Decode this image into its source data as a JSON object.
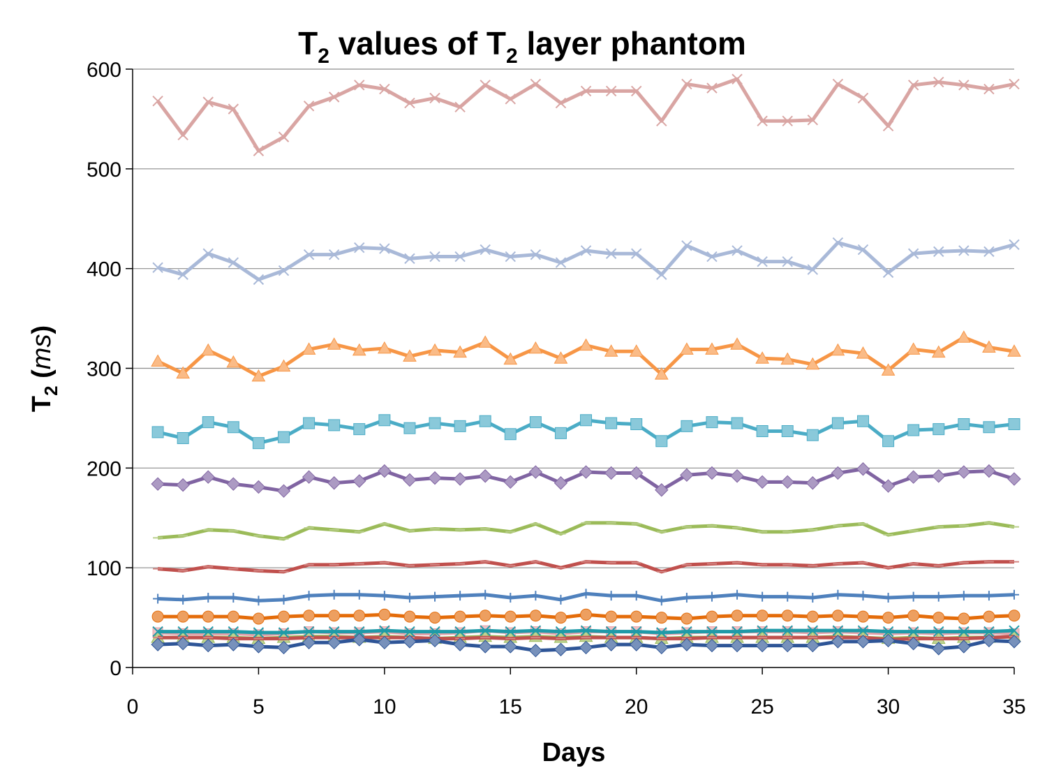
{
  "chart_data": {
    "type": "line",
    "title": {
      "main": "T",
      "sub": "2",
      "mid": " values of T",
      "sub2": "2",
      "tail": " layer phantom"
    },
    "xlabel": "Days",
    "ylabel": {
      "main": "T",
      "sub": "2",
      "tail_open": " (",
      "italic": "ms",
      "tail_close": ")"
    },
    "xlim": [
      0,
      35
    ],
    "ylim": [
      0,
      600
    ],
    "x_ticks": [
      0,
      5,
      10,
      15,
      20,
      25,
      30,
      35
    ],
    "y_ticks": [
      0,
      100,
      200,
      300,
      400,
      500,
      600
    ],
    "grid": "horizontal",
    "legend": "none",
    "x": [
      1,
      2,
      3,
      4,
      5,
      6,
      7,
      8,
      9,
      10,
      11,
      12,
      13,
      14,
      15,
      16,
      17,
      18,
      19,
      20,
      21,
      22,
      23,
      24,
      25,
      26,
      27,
      28,
      29,
      30,
      31,
      32,
      33,
      34,
      35
    ],
    "series": [
      {
        "name": "series-1",
        "color": "#d9a5a3",
        "marker": "x",
        "values": [
          568,
          534,
          567,
          560,
          518,
          532,
          563,
          572,
          584,
          580,
          566,
          571,
          562,
          584,
          570,
          585,
          566,
          578,
          578,
          578,
          548,
          585,
          581,
          590,
          548,
          548,
          549,
          585,
          571,
          543,
          584,
          587,
          584,
          580,
          585
        ]
      },
      {
        "name": "series-2",
        "color": "#a9b9d8",
        "marker": "x",
        "values": [
          401,
          394,
          415,
          406,
          389,
          398,
          414,
          414,
          421,
          420,
          410,
          412,
          412,
          419,
          412,
          414,
          406,
          418,
          415,
          415,
          394,
          423,
          412,
          418,
          407,
          407,
          399,
          426,
          419,
          396,
          415,
          417,
          418,
          417,
          424
        ]
      },
      {
        "name": "series-3",
        "color": "#f79646",
        "marker": "triangle",
        "values": [
          307,
          295,
          318,
          306,
          292,
          302,
          319,
          324,
          318,
          320,
          312,
          318,
          316,
          326,
          309,
          320,
          310,
          323,
          317,
          317,
          294,
          319,
          319,
          324,
          310,
          309,
          304,
          318,
          315,
          298,
          319,
          316,
          331,
          321,
          317
        ]
      },
      {
        "name": "series-4",
        "color": "#4bacc6",
        "marker": "square",
        "values": [
          236,
          230,
          246,
          241,
          225,
          231,
          245,
          243,
          239,
          248,
          240,
          245,
          242,
          247,
          234,
          246,
          235,
          248,
          245,
          244,
          227,
          242,
          246,
          245,
          237,
          237,
          233,
          245,
          247,
          227,
          238,
          239,
          244,
          241,
          244
        ]
      },
      {
        "name": "series-5",
        "color": "#8064a2",
        "marker": "diamond",
        "values": [
          184,
          183,
          191,
          184,
          181,
          177,
          191,
          185,
          187,
          197,
          188,
          190,
          189,
          192,
          186,
          196,
          185,
          196,
          195,
          195,
          178,
          193,
          195,
          192,
          186,
          186,
          185,
          195,
          199,
          182,
          191,
          192,
          196,
          197,
          189
        ]
      },
      {
        "name": "series-6",
        "color": "#9bbb59",
        "marker": "dash",
        "values": [
          130,
          132,
          138,
          137,
          132,
          129,
          140,
          138,
          136,
          144,
          137,
          139,
          138,
          139,
          136,
          144,
          134,
          145,
          145,
          144,
          136,
          141,
          142,
          140,
          136,
          136,
          138,
          142,
          144,
          133,
          137,
          141,
          142,
          145,
          141
        ]
      },
      {
        "name": "series-7",
        "color": "#c0504d",
        "marker": "dash",
        "values": [
          99,
          97,
          101,
          99,
          97,
          96,
          103,
          103,
          104,
          105,
          102,
          103,
          104,
          106,
          102,
          106,
          100,
          106,
          105,
          105,
          96,
          103,
          104,
          105,
          103,
          103,
          102,
          104,
          105,
          100,
          104,
          102,
          105,
          106,
          106
        ]
      },
      {
        "name": "series-8",
        "color": "#4f81bd",
        "marker": "plus",
        "values": [
          69,
          68,
          70,
          70,
          67,
          68,
          72,
          73,
          73,
          72,
          70,
          71,
          72,
          73,
          70,
          72,
          68,
          74,
          72,
          72,
          67,
          70,
          71,
          73,
          71,
          71,
          70,
          73,
          72,
          70,
          71,
          71,
          72,
          72,
          73
        ]
      },
      {
        "name": "series-9",
        "color": "#e46c0a",
        "marker": "circle",
        "values": [
          51,
          51,
          51,
          51,
          49,
          51,
          52,
          52,
          52,
          53,
          51,
          50,
          51,
          52,
          51,
          52,
          50,
          53,
          51,
          51,
          50,
          49,
          51,
          52,
          52,
          52,
          51,
          52,
          51,
          50,
          52,
          50,
          49,
          51,
          52
        ]
      },
      {
        "name": "series-10",
        "color": "#e6a0a8",
        "marker": "square-x",
        "values": [
          35,
          34,
          34,
          34,
          33,
          34,
          36,
          35,
          35,
          36,
          34,
          34,
          35,
          37,
          35,
          36,
          34,
          36,
          36,
          36,
          34,
          35,
          36,
          36,
          36,
          36,
          35,
          36,
          35,
          34,
          35,
          34,
          35,
          35,
          34
        ]
      },
      {
        "name": "series-11",
        "color": "#9bbb59",
        "marker": "triangle",
        "values": [
          30,
          30,
          30,
          30,
          29,
          30,
          31,
          31,
          30,
          31,
          30,
          29,
          30,
          31,
          30,
          31,
          30,
          31,
          30,
          30,
          29,
          30,
          30,
          30,
          30,
          30,
          30,
          31,
          30,
          29,
          30,
          29,
          30,
          30,
          31
        ]
      },
      {
        "name": "series-12",
        "color": "#c0504d",
        "marker": "dash",
        "values": [
          30,
          30,
          30,
          29,
          29,
          29,
          30,
          30,
          30,
          30,
          30,
          29,
          29,
          30,
          29,
          30,
          29,
          30,
          30,
          30,
          29,
          29,
          30,
          30,
          30,
          30,
          30,
          30,
          30,
          28,
          29,
          29,
          29,
          30,
          31
        ]
      },
      {
        "name": "series-13",
        "color": "#2e5597",
        "marker": "diamond",
        "values": [
          23,
          24,
          22,
          23,
          21,
          20,
          25,
          25,
          28,
          25,
          26,
          27,
          23,
          21,
          21,
          17,
          18,
          20,
          23,
          23,
          20,
          23,
          22,
          22,
          22,
          22,
          22,
          26,
          26,
          27,
          24,
          19,
          21,
          27,
          26
        ]
      },
      {
        "name": "series-14",
        "color": "#1f9aa8",
        "marker": "x",
        "values": [
          36,
          36,
          36,
          36,
          35,
          35,
          36,
          36,
          36,
          37,
          36,
          36,
          36,
          37,
          36,
          37,
          36,
          37,
          36,
          36,
          35,
          36,
          36,
          36,
          37,
          37,
          37,
          37,
          37,
          36,
          36,
          36,
          36,
          36,
          37
        ]
      }
    ]
  }
}
